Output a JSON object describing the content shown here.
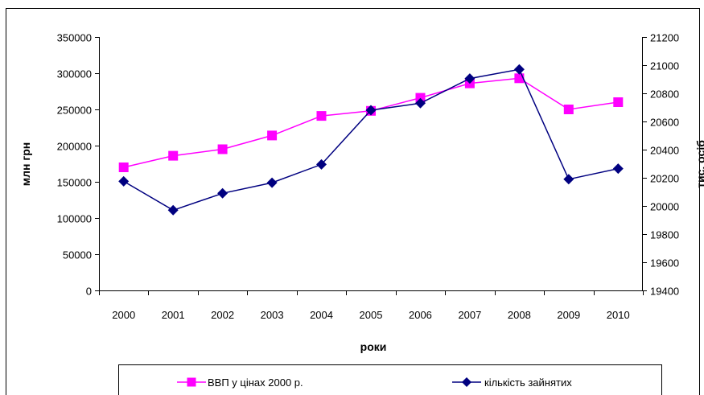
{
  "chart_data": {
    "type": "line",
    "title": "",
    "xlabel": "роки",
    "ylabel_left": "млн грн",
    "ylabel_right": "тис. осіб",
    "categories": [
      "2000",
      "2001",
      "2002",
      "2003",
      "2004",
      "2005",
      "2006",
      "2007",
      "2008",
      "2009",
      "2010"
    ],
    "y_left": {
      "min": 0,
      "max": 350000,
      "ticks": [
        "0",
        "50000",
        "100000",
        "150000",
        "200000",
        "250000",
        "300000",
        "350000"
      ]
    },
    "y_right": {
      "min": 19400,
      "max": 21200,
      "ticks": [
        "19400",
        "19600",
        "19800",
        "20000",
        "20200",
        "20400",
        "20600",
        "20800",
        "21000",
        "21200"
      ]
    },
    "grid": false,
    "legend_position": "bottom",
    "series": [
      {
        "name": "ВВП у цінах 2000 р.",
        "axis": "left",
        "marker": "square",
        "color": "#ff00ff",
        "values": [
          170000,
          186000,
          195000,
          214000,
          241000,
          248000,
          266000,
          286000,
          293000,
          250000,
          260000
        ]
      },
      {
        "name": "кількість зайнятих",
        "axis": "right",
        "marker": "diamond",
        "color": "#000080",
        "values": [
          20175,
          19970,
          20090,
          20165,
          20295,
          20680,
          20730,
          20905,
          20970,
          20190,
          20265
        ]
      }
    ]
  }
}
